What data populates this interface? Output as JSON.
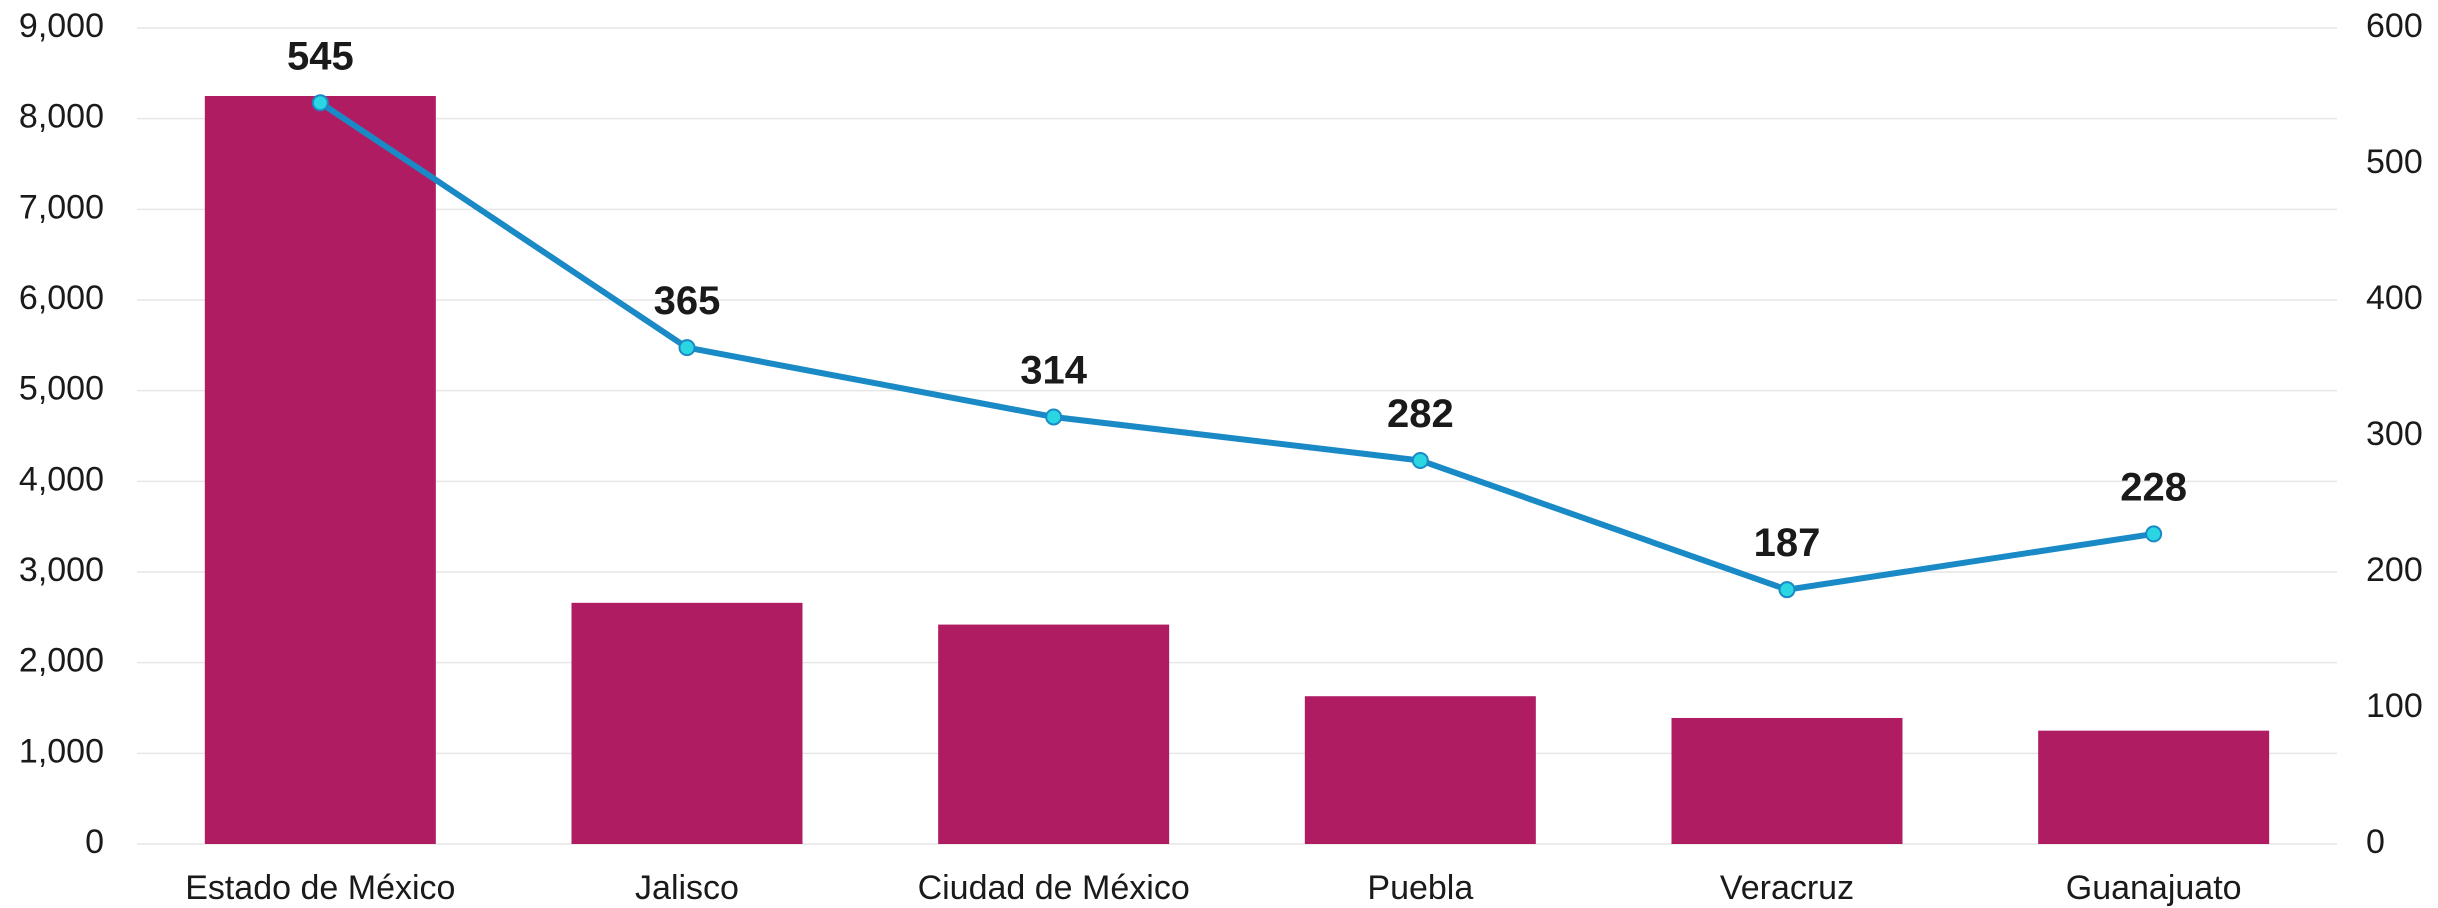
{
  "chart_data": {
    "type": "bar_line",
    "categories": [
      "Estado de México",
      "Jalisco",
      "Ciudad de México",
      "Puebla",
      "Veracruz",
      "Guanajuato"
    ],
    "series": [
      {
        "type": "bar",
        "color": "#b01c62",
        "values": [
          8250,
          2660,
          2420,
          1630,
          1390,
          1250
        ]
      },
      {
        "type": "line",
        "axis": "y2",
        "color": "#1a8ac6",
        "marker_color": "#2ad6e2",
        "values": [
          545,
          365,
          314,
          282,
          187,
          228
        ]
      }
    ],
    "ylim": [
      0,
      9000
    ],
    "yticks": [
      0,
      {
        "value": 1000,
        "label": "1,000"
      },
      {
        "value": 2000,
        "label": "2,000"
      },
      {
        "value": 3000,
        "label": "3,000"
      },
      {
        "value": 4000,
        "label": "4,000"
      },
      {
        "value": 5000,
        "label": "5,000"
      },
      {
        "value": 6000,
        "label": "6,000"
      },
      {
        "value": 7000,
        "label": "7,000"
      },
      {
        "value": 8000,
        "label": "8,000"
      },
      {
        "value": 9000,
        "label": "9,000"
      }
    ],
    "y2lim": [
      0,
      600
    ],
    "y2ticks": [
      0,
      100,
      200,
      300,
      400,
      500,
      600
    ],
    "grid": true
  }
}
